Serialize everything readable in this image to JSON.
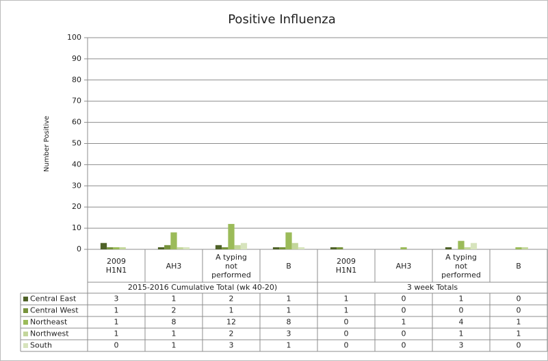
{
  "chart_data": {
    "type": "bar",
    "title": "Positive Influenza",
    "y_label": "Number Positive",
    "categories": [
      "2009 H1N1",
      "AH3",
      "A typing not performed",
      "B",
      "2009 H1N1",
      "AH3",
      "A typing not performed",
      "B"
    ],
    "groups": [
      "2015-2016 Cumulative Total (wk 40-20)",
      "3 week Totals"
    ],
    "series": [
      {
        "name": "Central East",
        "color": "#4f6228",
        "values": [
          3,
          1,
          2,
          1,
          1,
          0,
          1,
          0
        ]
      },
      {
        "name": "Central West",
        "color": "#77933c",
        "values": [
          1,
          2,
          1,
          1,
          1,
          0,
          0,
          0
        ]
      },
      {
        "name": "Northeast",
        "color": "#9bbb59",
        "values": [
          1,
          8,
          12,
          8,
          0,
          1,
          4,
          1
        ]
      },
      {
        "name": "Northwest",
        "color": "#c3d69b",
        "values": [
          1,
          1,
          2,
          3,
          0,
          0,
          1,
          1
        ]
      },
      {
        "name": "South",
        "color": "#d7e4bd",
        "values": [
          0,
          1,
          3,
          1,
          0,
          0,
          3,
          0
        ]
      }
    ],
    "ylim": [
      0,
      100
    ],
    "yticks": [
      0,
      10,
      20,
      30,
      40,
      50,
      60,
      70,
      80,
      90,
      100
    ],
    "grid": true
  }
}
